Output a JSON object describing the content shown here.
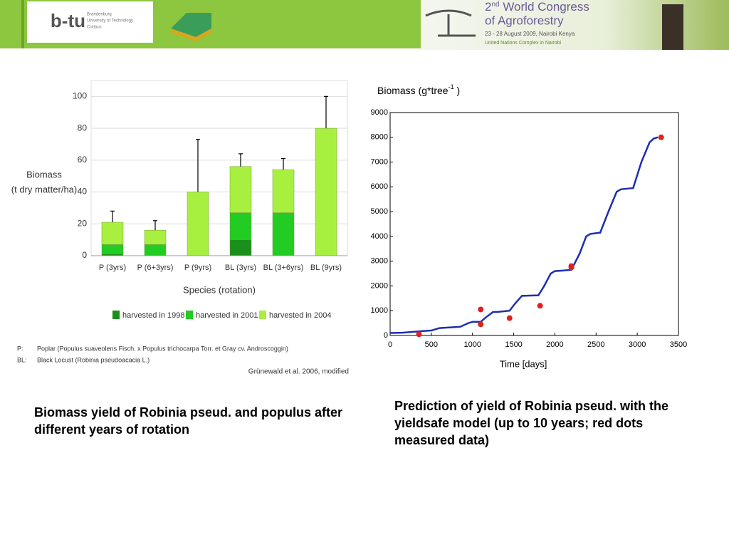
{
  "header": {
    "logo_mark": "b-tu",
    "logo_lines": [
      "Brandenburg",
      "University of Technology",
      "Cottbus"
    ],
    "congress_num": "2",
    "congress_sup": "nd",
    "congress_title": " World Congress",
    "congress_sub": "of Agroforestry",
    "congress_date": "23 - 28 August 2009, Nairobi Kenya",
    "congress_venue": "United Nations Complex in Nairobi"
  },
  "chart_data": [
    {
      "type": "bar",
      "stacked": true,
      "categories": [
        "P (3yrs)",
        "P (6+3yrs)",
        "P (9yrs)",
        "BL (3yrs)",
        "BL (3+6yrs)",
        "BL (9yrs)"
      ],
      "series": [
        {
          "name": "harvested in 1998",
          "color": "#1b8f1b",
          "values": [
            1,
            0,
            0,
            10,
            0,
            0
          ]
        },
        {
          "name": "harvested in 2001",
          "color": "#22cc22",
          "values": [
            6,
            7,
            0,
            17,
            27,
            0
          ]
        },
        {
          "name": "harvested in 2004",
          "color": "#a8f040",
          "values": [
            14,
            9,
            40,
            29,
            27,
            80
          ]
        }
      ],
      "errors": [
        7,
        6,
        33,
        8,
        7,
        20
      ],
      "y_label": [
        "Biomass",
        "(t dry matter/ha)"
      ],
      "x_label": "Species (rotation)",
      "ylim": [
        0,
        110
      ],
      "yticks": [
        0,
        20,
        40,
        60,
        80,
        100
      ],
      "grid": true,
      "legend": "bottom",
      "notes": [
        [
          "P:",
          "Poplar (Populus suaveolens Fisch. x Populus trichocarpa Torr. et Gray cv. Androscoggin)"
        ],
        [
          "BL:",
          "Black Locust (Robinia pseudoacacia L.)"
        ]
      ],
      "source": "Grünewald et al. 2006, modified"
    },
    {
      "type": "line",
      "y_label": "Biomass (g*tree",
      "y_label_sup": "-1",
      "y_label_end": " )",
      "x_label": "Time [days]",
      "xlim": [
        0,
        3500
      ],
      "ylim": [
        0,
        9000
      ],
      "xticks": [
        0,
        500,
        1000,
        1500,
        2000,
        2500,
        3000,
        3500
      ],
      "yticks": [
        0,
        1000,
        2000,
        3000,
        4000,
        5000,
        6000,
        7000,
        8000,
        9000
      ],
      "series": [
        {
          "name": "model",
          "color": "#1a2fb0",
          "x": [
            0,
            150,
            300,
            400,
            500,
            600,
            700,
            850,
            950,
            1000,
            1100,
            1150,
            1250,
            1300,
            1450,
            1520,
            1600,
            1800,
            1870,
            1950,
            2000,
            2100,
            2200,
            2300,
            2380,
            2430,
            2550,
            2650,
            2750,
            2800,
            2950,
            3050,
            3150,
            3200,
            3250
          ],
          "y": [
            100,
            110,
            150,
            180,
            200,
            300,
            320,
            350,
            500,
            550,
            550,
            700,
            950,
            950,
            1000,
            1300,
            1600,
            1620,
            2000,
            2500,
            2600,
            2620,
            2650,
            3300,
            4000,
            4100,
            4150,
            5000,
            5800,
            5900,
            5950,
            7000,
            7800,
            7950,
            8000
          ]
        }
      ],
      "points": {
        "name": "measured",
        "color": "#e02020",
        "x": [
          350,
          1100,
          1100,
          1450,
          1820,
          2200,
          2200,
          3290
        ],
        "y": [
          50,
          1050,
          450,
          700,
          1200,
          2800,
          2750,
          8000
        ]
      }
    }
  ],
  "captions": [
    "Biomass yield of Robinia pseud. and populus after different years of rotation",
    "Prediction of yield of Robinia pseud. with the yieldsafe model (up to 10 years; red dots measured data)"
  ]
}
